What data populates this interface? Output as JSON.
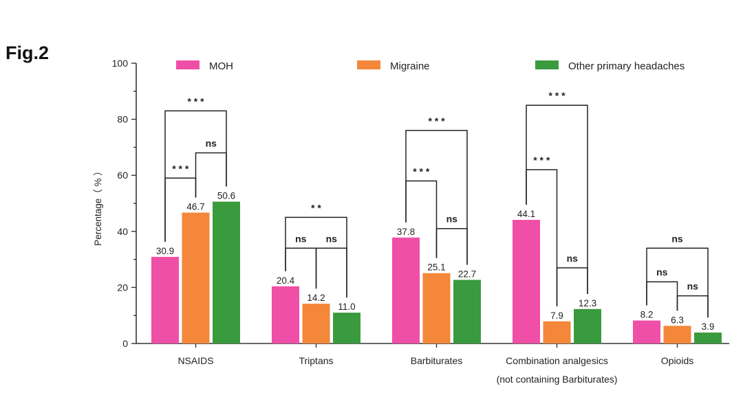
{
  "figure_label": "Fig.2",
  "chart_data": {
    "type": "bar",
    "title": "",
    "xlabel": "",
    "ylabel": "Percentage（ % ）",
    "ylim": [
      0,
      100
    ],
    "yticks": [
      0,
      20,
      40,
      60,
      80,
      100
    ],
    "grid": false,
    "legend_position": "top",
    "categories": [
      "NSAIDS",
      "Triptans",
      "Barbiturates",
      "Combination analgesics",
      "Opioids"
    ],
    "category_sublabels": [
      "",
      "",
      "",
      "(not containing Barbiturates)",
      ""
    ],
    "series": [
      {
        "name": "MOH",
        "color": "#ef4fa6",
        "values": [
          30.9,
          20.4,
          37.8,
          44.1,
          8.2
        ],
        "labels": [
          "30.9",
          "20.4",
          "37.8",
          "44.1",
          "8.2"
        ]
      },
      {
        "name": "Migraine",
        "color": "#f4873a",
        "values": [
          46.7,
          14.2,
          25.1,
          7.9,
          6.3
        ],
        "labels": [
          "46.7",
          "14.2",
          "25.1",
          "7.9",
          "6.3"
        ]
      },
      {
        "name": "Other primary headaches",
        "color": "#3a9a3e",
        "values": [
          50.6,
          11.0,
          22.7,
          12.3,
          3.9
        ],
        "labels": [
          "50.6",
          "11.0",
          "22.7",
          "12.3",
          "3.9"
        ]
      }
    ],
    "significance": [
      {
        "category": 0,
        "from": 0,
        "to": 2,
        "level": 83,
        "label": "* * *"
      },
      {
        "category": 0,
        "from": 1,
        "to": 2,
        "level": 68,
        "label": "ns"
      },
      {
        "category": 0,
        "from": 0,
        "to": 1,
        "level": 59,
        "label": "* * *"
      },
      {
        "category": 1,
        "from": 0,
        "to": 2,
        "level": 45,
        "label": "* *"
      },
      {
        "category": 1,
        "from": 0,
        "to": 1,
        "level": 34,
        "label": "ns"
      },
      {
        "category": 1,
        "from": 1,
        "to": 2,
        "level": 34,
        "label": "ns"
      },
      {
        "category": 2,
        "from": 0,
        "to": 2,
        "level": 76,
        "label": "* * *"
      },
      {
        "category": 2,
        "from": 0,
        "to": 1,
        "level": 58,
        "label": "* * *"
      },
      {
        "category": 2,
        "from": 1,
        "to": 2,
        "level": 41,
        "label": "ns"
      },
      {
        "category": 3,
        "from": 0,
        "to": 2,
        "level": 85,
        "label": "* * *"
      },
      {
        "category": 3,
        "from": 0,
        "to": 1,
        "level": 62,
        "label": "* * *"
      },
      {
        "category": 3,
        "from": 1,
        "to": 2,
        "level": 27,
        "label": "ns"
      },
      {
        "category": 4,
        "from": 0,
        "to": 2,
        "level": 34,
        "label": "ns"
      },
      {
        "category": 4,
        "from": 0,
        "to": 1,
        "level": 22,
        "label": "ns"
      },
      {
        "category": 4,
        "from": 1,
        "to": 2,
        "level": 17,
        "label": "ns"
      }
    ]
  }
}
